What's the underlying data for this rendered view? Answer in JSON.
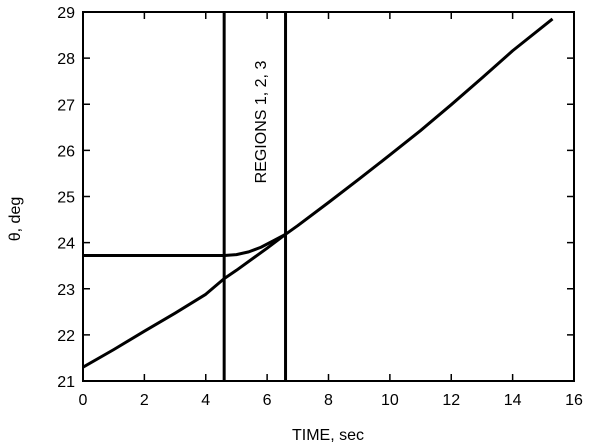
{
  "chart_data": {
    "type": "line",
    "xlabel": "TIME, sec",
    "ylabel": "θ, deg",
    "xlim": [
      0,
      16
    ],
    "ylim": [
      21,
      29
    ],
    "xticks": [
      "0",
      "2",
      "4",
      "6",
      "8",
      "10",
      "12",
      "14",
      "16"
    ],
    "yticks": [
      "21",
      "22",
      "23",
      "24",
      "25",
      "26",
      "27",
      "28",
      "29"
    ],
    "grid": false,
    "annotations": [
      {
        "text": "REGIONS 1, 2, 3",
        "orientation": "vertical"
      }
    ],
    "vertical_lines": [
      4.6,
      6.6
    ],
    "series": [
      {
        "x": [
          0,
          1,
          2,
          3,
          4,
          4.6,
          5,
          6,
          6.6,
          7,
          8,
          9,
          10,
          11,
          12,
          13,
          14,
          15.3
        ],
        "y": [
          21.3,
          21.68,
          22.08,
          22.47,
          22.88,
          23.22,
          23.4,
          23.88,
          24.18,
          24.37,
          24.87,
          25.38,
          25.9,
          26.43,
          26.99,
          27.57,
          28.16,
          28.85
        ]
      },
      {
        "x": [
          0,
          2,
          4,
          4.6,
          5.0,
          5.4,
          5.8,
          6.2,
          6.6
        ],
        "y": [
          23.72,
          23.72,
          23.72,
          23.72,
          23.74,
          23.8,
          23.9,
          24.04,
          24.18
        ]
      }
    ]
  }
}
